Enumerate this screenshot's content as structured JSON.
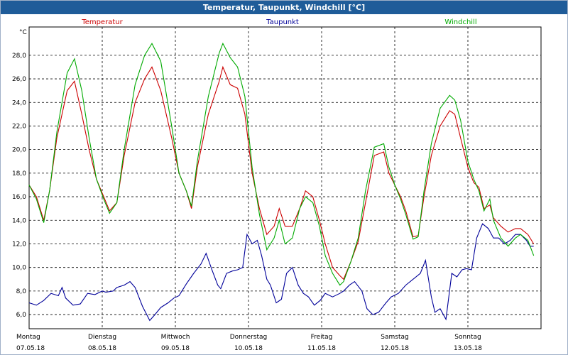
{
  "window": {
    "title": "Temperatur, Taupunkt, Windchill [°C]"
  },
  "chart_data": {
    "type": "line",
    "title": "Temperatur, Taupunkt, Windchill [°C]",
    "ylabel": "°C",
    "xlabel": "",
    "ylim": [
      4.8,
      30.4
    ],
    "xlim": [
      0,
      7.0
    ],
    "yticks": [
      "6,0",
      "8,0",
      "10,0",
      "12,0",
      "14,0",
      "16,0",
      "18,0",
      "20,0",
      "22,0",
      "24,0",
      "26,0",
      "28,0"
    ],
    "ytick_values": [
      6,
      8,
      10,
      12,
      14,
      16,
      18,
      20,
      22,
      24,
      26,
      28
    ],
    "xticks": [
      {
        "day": "Montag",
        "date": "07.05.18",
        "x": 0
      },
      {
        "day": "Dienstag",
        "date": "08.05.18",
        "x": 1
      },
      {
        "day": "Mittwoch",
        "date": "09.05.18",
        "x": 2
      },
      {
        "day": "Donnerstag",
        "date": "10.05.18",
        "x": 3
      },
      {
        "day": "Freitag",
        "date": "11.05.18",
        "x": 4
      },
      {
        "day": "Samstag",
        "date": "12.05.18",
        "x": 5
      },
      {
        "day": "Sonntag",
        "date": "13.05.18",
        "x": 6
      }
    ],
    "grid": true,
    "legend_position": "top",
    "series": [
      {
        "name": "Temperatur",
        "color": "#cc0000",
        "points": [
          [
            0,
            17.0
          ],
          [
            0.1,
            16.0
          ],
          [
            0.2,
            14.0
          ],
          [
            0.28,
            16.5
          ],
          [
            0.38,
            21.0
          ],
          [
            0.52,
            25.0
          ],
          [
            0.62,
            25.8
          ],
          [
            0.72,
            23.0
          ],
          [
            0.82,
            20.0
          ],
          [
            0.92,
            17.5
          ],
          [
            1.02,
            16.0
          ],
          [
            1.1,
            14.8
          ],
          [
            1.2,
            15.5
          ],
          [
            1.3,
            19.5
          ],
          [
            1.45,
            24.0
          ],
          [
            1.58,
            26.0
          ],
          [
            1.68,
            27.0
          ],
          [
            1.8,
            25.0
          ],
          [
            1.95,
            21.0
          ],
          [
            2.05,
            18.0
          ],
          [
            2.15,
            16.5
          ],
          [
            2.22,
            15.0
          ],
          [
            2.3,
            18.5
          ],
          [
            2.45,
            23.0
          ],
          [
            2.6,
            25.8
          ],
          [
            2.65,
            27.0
          ],
          [
            2.75,
            25.5
          ],
          [
            2.85,
            25.2
          ],
          [
            2.95,
            23.0
          ],
          [
            3.05,
            18.0
          ],
          [
            3.15,
            15.0
          ],
          [
            3.25,
            12.8
          ],
          [
            3.35,
            13.5
          ],
          [
            3.42,
            15.0
          ],
          [
            3.5,
            13.5
          ],
          [
            3.6,
            13.5
          ],
          [
            3.7,
            15.0
          ],
          [
            3.78,
            16.5
          ],
          [
            3.88,
            16.0
          ],
          [
            3.97,
            14.0
          ],
          [
            4.05,
            12.0
          ],
          [
            4.15,
            10.0
          ],
          [
            4.25,
            9.3
          ],
          [
            4.3,
            9.0
          ],
          [
            4.4,
            10.5
          ],
          [
            4.5,
            12.2
          ],
          [
            4.6,
            15.5
          ],
          [
            4.72,
            19.5
          ],
          [
            4.85,
            19.8
          ],
          [
            4.92,
            18.0
          ],
          [
            5.0,
            17.0
          ],
          [
            5.08,
            16.0
          ],
          [
            5.15,
            14.8
          ],
          [
            5.25,
            12.6
          ],
          [
            5.32,
            12.7
          ],
          [
            5.4,
            16.0
          ],
          [
            5.5,
            19.5
          ],
          [
            5.62,
            22.0
          ],
          [
            5.75,
            23.3
          ],
          [
            5.82,
            23.0
          ],
          [
            5.9,
            21.0
          ],
          [
            6.0,
            18.5
          ],
          [
            6.08,
            17.2
          ],
          [
            6.15,
            16.8
          ],
          [
            6.22,
            15.0
          ],
          [
            6.3,
            15.3
          ],
          [
            6.35,
            14.2
          ],
          [
            6.45,
            13.5
          ],
          [
            6.55,
            13.0
          ],
          [
            6.65,
            13.3
          ],
          [
            6.72,
            13.3
          ],
          [
            6.82,
            12.8
          ],
          [
            6.9,
            12.0
          ]
        ]
      },
      {
        "name": "Taupunkt",
        "color": "#000099",
        "points": [
          [
            0,
            7.0
          ],
          [
            0.1,
            6.8
          ],
          [
            0.2,
            7.2
          ],
          [
            0.3,
            7.8
          ],
          [
            0.4,
            7.6
          ],
          [
            0.45,
            8.3
          ],
          [
            0.5,
            7.4
          ],
          [
            0.6,
            6.8
          ],
          [
            0.7,
            6.9
          ],
          [
            0.8,
            7.8
          ],
          [
            0.9,
            7.7
          ],
          [
            1.0,
            8.0
          ],
          [
            1.05,
            7.9
          ],
          [
            1.15,
            8.0
          ],
          [
            1.2,
            8.3
          ],
          [
            1.3,
            8.5
          ],
          [
            1.38,
            8.8
          ],
          [
            1.45,
            8.3
          ],
          [
            1.55,
            6.7
          ],
          [
            1.65,
            5.5
          ],
          [
            1.72,
            6.0
          ],
          [
            1.8,
            6.6
          ],
          [
            1.9,
            7.0
          ],
          [
            1.98,
            7.4
          ],
          [
            2.05,
            7.6
          ],
          [
            2.15,
            8.6
          ],
          [
            2.25,
            9.5
          ],
          [
            2.35,
            10.3
          ],
          [
            2.42,
            11.2
          ],
          [
            2.5,
            9.8
          ],
          [
            2.58,
            8.5
          ],
          [
            2.62,
            8.2
          ],
          [
            2.7,
            9.5
          ],
          [
            2.78,
            9.7
          ],
          [
            2.85,
            9.8
          ],
          [
            2.92,
            10.0
          ],
          [
            2.98,
            12.8
          ],
          [
            3.05,
            12.0
          ],
          [
            3.12,
            12.3
          ],
          [
            3.18,
            11.0
          ],
          [
            3.25,
            9.0
          ],
          [
            3.3,
            8.5
          ],
          [
            3.38,
            7.0
          ],
          [
            3.45,
            7.3
          ],
          [
            3.52,
            9.5
          ],
          [
            3.6,
            10.0
          ],
          [
            3.68,
            8.5
          ],
          [
            3.75,
            7.8
          ],
          [
            3.82,
            7.5
          ],
          [
            3.9,
            6.8
          ],
          [
            3.98,
            7.2
          ],
          [
            4.05,
            7.8
          ],
          [
            4.15,
            7.5
          ],
          [
            4.25,
            7.8
          ],
          [
            4.3,
            8.0
          ],
          [
            4.38,
            8.5
          ],
          [
            4.45,
            8.8
          ],
          [
            4.55,
            8.0
          ],
          [
            4.62,
            6.5
          ],
          [
            4.7,
            6.0
          ],
          [
            4.78,
            6.2
          ],
          [
            4.88,
            7.0
          ],
          [
            4.95,
            7.5
          ],
          [
            5.05,
            7.8
          ],
          [
            5.15,
            8.5
          ],
          [
            5.25,
            9.0
          ],
          [
            5.35,
            9.5
          ],
          [
            5.42,
            10.6
          ],
          [
            5.5,
            7.5
          ],
          [
            5.55,
            6.2
          ],
          [
            5.62,
            6.5
          ],
          [
            5.7,
            5.6
          ],
          [
            5.78,
            9.5
          ],
          [
            5.85,
            9.2
          ],
          [
            5.92,
            9.8
          ],
          [
            5.98,
            9.9
          ],
          [
            6.05,
            9.8
          ],
          [
            6.12,
            12.5
          ],
          [
            6.2,
            13.7
          ],
          [
            6.28,
            13.3
          ],
          [
            6.35,
            12.5
          ],
          [
            6.42,
            12.5
          ],
          [
            6.5,
            12.0
          ],
          [
            6.58,
            12.3
          ],
          [
            6.65,
            12.8
          ],
          [
            6.72,
            12.8
          ],
          [
            6.8,
            12.3
          ],
          [
            6.85,
            11.8
          ],
          [
            6.9,
            11.8
          ]
        ]
      },
      {
        "name": "Windchill",
        "color": "#00aa00",
        "points": [
          [
            0,
            17.0
          ],
          [
            0.1,
            15.8
          ],
          [
            0.2,
            13.8
          ],
          [
            0.28,
            16.5
          ],
          [
            0.38,
            21.5
          ],
          [
            0.52,
            26.5
          ],
          [
            0.62,
            27.7
          ],
          [
            0.72,
            25.0
          ],
          [
            0.82,
            21.0
          ],
          [
            0.92,
            17.5
          ],
          [
            1.02,
            15.8
          ],
          [
            1.1,
            14.6
          ],
          [
            1.2,
            15.5
          ],
          [
            1.3,
            20.0
          ],
          [
            1.45,
            25.5
          ],
          [
            1.58,
            28.0
          ],
          [
            1.68,
            29.0
          ],
          [
            1.8,
            27.5
          ],
          [
            1.95,
            22.0
          ],
          [
            2.05,
            18.0
          ],
          [
            2.15,
            16.5
          ],
          [
            2.22,
            15.2
          ],
          [
            2.3,
            19.0
          ],
          [
            2.45,
            24.5
          ],
          [
            2.6,
            28.2
          ],
          [
            2.65,
            29.0
          ],
          [
            2.75,
            27.8
          ],
          [
            2.85,
            27.0
          ],
          [
            2.95,
            24.5
          ],
          [
            3.05,
            18.5
          ],
          [
            3.15,
            14.5
          ],
          [
            3.25,
            11.5
          ],
          [
            3.35,
            12.5
          ],
          [
            3.42,
            14.0
          ],
          [
            3.5,
            12.0
          ],
          [
            3.6,
            12.5
          ],
          [
            3.7,
            15.0
          ],
          [
            3.78,
            16.0
          ],
          [
            3.88,
            15.5
          ],
          [
            3.97,
            13.5
          ],
          [
            4.05,
            11.0
          ],
          [
            4.15,
            9.5
          ],
          [
            4.25,
            8.5
          ],
          [
            4.3,
            8.8
          ],
          [
            4.4,
            10.5
          ],
          [
            4.5,
            12.5
          ],
          [
            4.6,
            16.5
          ],
          [
            4.72,
            20.2
          ],
          [
            4.85,
            20.5
          ],
          [
            4.92,
            18.5
          ],
          [
            5.0,
            17.0
          ],
          [
            5.08,
            15.8
          ],
          [
            5.15,
            14.5
          ],
          [
            5.25,
            12.4
          ],
          [
            5.32,
            12.6
          ],
          [
            5.4,
            16.5
          ],
          [
            5.5,
            20.5
          ],
          [
            5.62,
            23.5
          ],
          [
            5.75,
            24.6
          ],
          [
            5.82,
            24.2
          ],
          [
            5.9,
            22.5
          ],
          [
            6.0,
            19.0
          ],
          [
            6.08,
            17.5
          ],
          [
            6.15,
            16.5
          ],
          [
            6.22,
            14.8
          ],
          [
            6.3,
            15.8
          ],
          [
            6.35,
            14.0
          ],
          [
            6.45,
            12.5
          ],
          [
            6.55,
            11.8
          ],
          [
            6.65,
            12.5
          ],
          [
            6.72,
            12.8
          ],
          [
            6.82,
            12.3
          ],
          [
            6.9,
            11.0
          ]
        ]
      }
    ]
  }
}
